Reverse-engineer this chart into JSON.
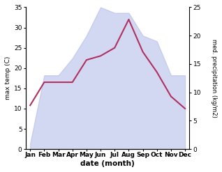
{
  "months": [
    "Jan",
    "Feb",
    "Mar",
    "Apr",
    "May",
    "Jun",
    "Jul",
    "Aug",
    "Sep",
    "Oct",
    "Nov",
    "Dec"
  ],
  "max_temp": [
    10.8,
    16.5,
    16.5,
    16.5,
    22.0,
    23.0,
    25.0,
    32.0,
    24.0,
    19.0,
    13.0,
    10.0
  ],
  "precipitation": [
    1.0,
    13.0,
    13.0,
    16.0,
    20.0,
    25.0,
    24.0,
    24.0,
    20.0,
    19.0,
    13.0,
    13.0
  ],
  "temp_color": "#b03060",
  "precip_fill_color": "#b0b8e8",
  "precip_fill_alpha": 0.55,
  "left_ylim": [
    0,
    35
  ],
  "right_ylim": [
    0,
    25
  ],
  "left_yticks": [
    0,
    5,
    10,
    15,
    20,
    25,
    30,
    35
  ],
  "right_yticks": [
    0,
    5,
    10,
    15,
    20,
    25
  ],
  "xlabel": "date (month)",
  "ylabel_left": "max temp (C)",
  "ylabel_right": "med. precipitation (kg/m2)",
  "background_color": "#ffffff"
}
